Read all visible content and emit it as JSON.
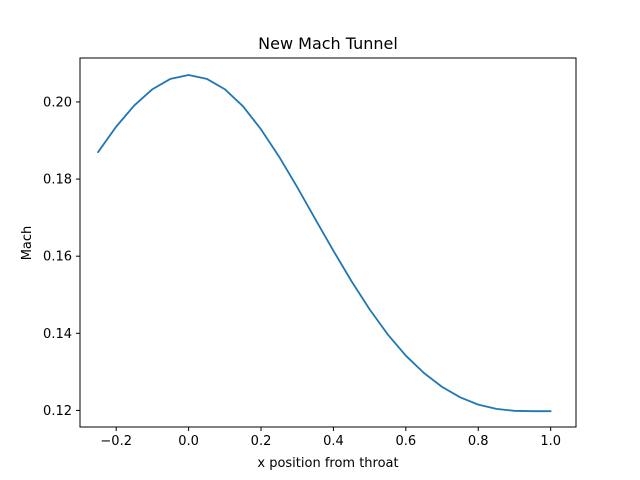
{
  "chart_data": {
    "type": "line",
    "title": "New Mach Tunnel",
    "xlabel": "x position from throat",
    "ylabel": "Mach",
    "xlim": [
      -0.3,
      1.07
    ],
    "ylim": [
      0.1157,
      0.2114
    ],
    "grid": false,
    "x_ticks": [
      -0.2,
      0.0,
      0.2,
      0.4,
      0.6,
      0.8,
      1.0
    ],
    "x_tick_labels": [
      "−0.2",
      "0.0",
      "0.2",
      "0.4",
      "0.6",
      "0.8",
      "1.0"
    ],
    "y_ticks": [
      0.12,
      0.14,
      0.16,
      0.18,
      0.2
    ],
    "y_tick_labels": [
      "0.12",
      "0.14",
      "0.16",
      "0.18",
      "0.20"
    ],
    "series": [
      {
        "color": "#1f77b4",
        "x": [
          -0.25,
          -0.2,
          -0.15,
          -0.1,
          -0.05,
          0.0,
          0.05,
          0.1,
          0.15,
          0.2,
          0.25,
          0.3,
          0.35,
          0.4,
          0.45,
          0.5,
          0.55,
          0.6,
          0.65,
          0.7,
          0.75,
          0.8,
          0.85,
          0.9,
          0.95,
          1.0
        ],
        "y": [
          0.187,
          0.1936,
          0.1991,
          0.2033,
          0.206,
          0.207,
          0.206,
          0.2033,
          0.1989,
          0.1929,
          0.1858,
          0.1779,
          0.1696,
          0.1614,
          0.1535,
          0.1462,
          0.1397,
          0.1342,
          0.1297,
          0.1261,
          0.1234,
          0.1215,
          0.1204,
          0.1199,
          0.1198,
          0.1198
        ]
      }
    ]
  }
}
